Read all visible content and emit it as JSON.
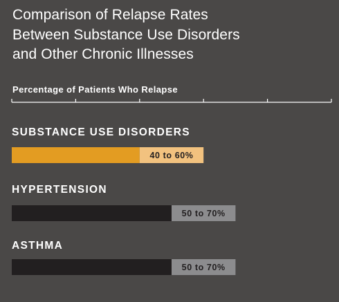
{
  "chart_data": {
    "type": "bar",
    "orientation": "horizontal",
    "title_lines": [
      "Comparison of Relapse Rates",
      "Between Substance Use Disorders",
      "and Other Chronic Illnesses"
    ],
    "axis_label": "Percentage of Patients Who Relapse",
    "xlim": [
      0,
      100
    ],
    "tick_count": 5,
    "categories": [
      "SUBSTANCE USE DISORDERS",
      "HYPERTENSION",
      "ASTHMA"
    ],
    "ranges": [
      {
        "low": 40,
        "high": 60,
        "label": "40 to 60%"
      },
      {
        "low": 50,
        "high": 70,
        "label": "50 to 70%"
      },
      {
        "low": 50,
        "high": 70,
        "label": "50 to 70%"
      }
    ],
    "colors": {
      "background": "#4a4847",
      "highlight_base": "#e39c22",
      "highlight_range": "#f2c27f",
      "base": "#221f20",
      "range": "#8c8c8e",
      "range_text": "#221f20",
      "axis": "#ffffff"
    }
  }
}
